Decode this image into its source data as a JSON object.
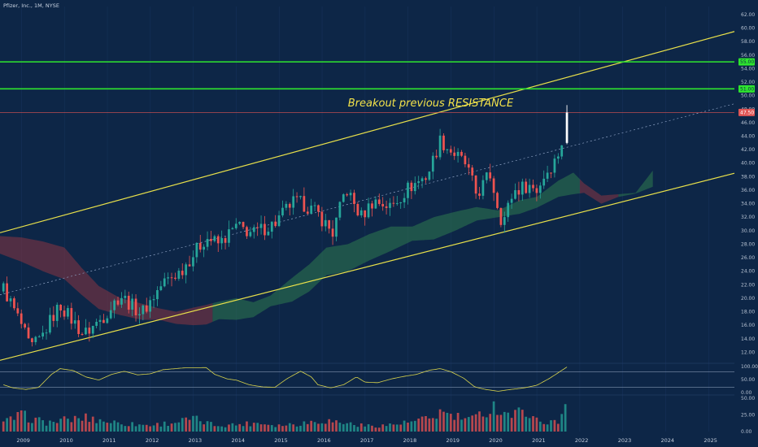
{
  "header": {
    "symbol_line": "Pfizer, Inc., 1M, NYSE"
  },
  "colors": {
    "background": "#0d2647",
    "up_candle": "#26a69a",
    "down_candle": "#ef5350",
    "breakout_candle": "#ffffff",
    "channel_line": "#e8e04a",
    "resistance_line": "#2ee52e",
    "price_line": "#e05555",
    "cloud_bull": "#2f7a4f",
    "cloud_bear": "#8a3442",
    "oscillator": "#d8d34c",
    "up_volume": "#26a69a",
    "down_volume": "#ef5350"
  },
  "annotation": {
    "text": "Breakout previous RESISTANCE"
  },
  "chart_data": {
    "type": "candlestick",
    "interval": "1M",
    "y_axis": {
      "ticks": [
        "62.00",
        "60.00",
        "58.00",
        "56.00",
        "54.00",
        "52.00",
        "50.00",
        "48.00",
        "46.00",
        "44.00",
        "42.00",
        "40.00",
        "38.00",
        "36.00",
        "34.00",
        "32.00",
        "30.00",
        "28.00",
        "26.00",
        "24.00",
        "22.00",
        "20.00",
        "18.00",
        "16.00",
        "14.00",
        "12.00"
      ],
      "range": [
        10.6,
        63.2
      ]
    },
    "x_axis": {
      "ticks": [
        "2009",
        "2010",
        "2011",
        "2012",
        "2013",
        "2014",
        "2015",
        "2016",
        "2017",
        "2018",
        "2019",
        "2020",
        "2021",
        "2022",
        "2023",
        "2024",
        "2025"
      ],
      "range": [
        2008.5,
        2025.6
      ]
    },
    "price_labels": [
      {
        "value": 55.0,
        "label": "55.00",
        "kind": "resistance"
      },
      {
        "value": 51.0,
        "label": "51.00",
        "kind": "resistance"
      },
      {
        "value": 47.5,
        "label": "47.50",
        "kind": "price"
      }
    ],
    "horizontal_lines": [
      55.0,
      51.0,
      47.5
    ],
    "channel": {
      "upper": [
        [
          2008.5,
          29.7
        ],
        [
          2025.6,
          59.5
        ]
      ],
      "lower": [
        [
          2008.5,
          10.8
        ],
        [
          2025.6,
          38.5
        ]
      ],
      "middle": [
        [
          2008.5,
          20.5
        ],
        [
          2025.6,
          48.8
        ]
      ]
    },
    "price_anchors": [
      [
        2008.58,
        21.5
      ],
      [
        2009.0,
        16.0
      ],
      [
        2009.2,
        12.5
      ],
      [
        2009.45,
        14.0
      ],
      [
        2009.7,
        17.0
      ],
      [
        2009.9,
        19.0
      ],
      [
        2010.15,
        17.0
      ],
      [
        2010.45,
        14.6
      ],
      [
        2010.9,
        17.2
      ],
      [
        2011.3,
        20.5
      ],
      [
        2011.55,
        19.0
      ],
      [
        2011.8,
        17.8
      ],
      [
        2012.3,
        22.3
      ],
      [
        2012.7,
        24.0
      ],
      [
        2013.3,
        29.0
      ],
      [
        2013.6,
        28.0
      ],
      [
        2014.0,
        30.6
      ],
      [
        2014.4,
        29.6
      ],
      [
        2014.9,
        31.1
      ],
      [
        2015.3,
        34.2
      ],
      [
        2015.55,
        34.0
      ],
      [
        2015.9,
        32.5
      ],
      [
        2016.25,
        29.6
      ],
      [
        2016.55,
        36.3
      ],
      [
        2016.9,
        32.0
      ],
      [
        2017.2,
        34.5
      ],
      [
        2017.6,
        33.5
      ],
      [
        2018.0,
        36.3
      ],
      [
        2018.45,
        38.2
      ],
      [
        2018.75,
        43.4
      ],
      [
        2019.0,
        41.8
      ],
      [
        2019.35,
        39.8
      ],
      [
        2019.6,
        35.2
      ],
      [
        2019.9,
        38.5
      ],
      [
        2020.2,
        31.0
      ],
      [
        2020.45,
        35.8
      ],
      [
        2020.8,
        36.8
      ],
      [
        2021.0,
        36.0
      ],
      [
        2021.2,
        38.5
      ],
      [
        2021.45,
        40.6
      ],
      [
        2021.6,
        43.4
      ],
      [
        2021.7,
        47.5
      ]
    ],
    "breakout_candle": {
      "open": 43.0,
      "close": 47.5,
      "high": 48.6,
      "low": 42.8
    },
    "ichimoku_cloud": {
      "upper": [
        [
          2008.5,
          29.2
        ],
        [
          2009.0,
          29.0
        ],
        [
          2009.5,
          28.4
        ],
        [
          2010.0,
          27.5
        ],
        [
          2010.4,
          24.5
        ],
        [
          2010.8,
          21.8
        ],
        [
          2011.3,
          20.0
        ],
        [
          2011.8,
          19.2
        ],
        [
          2012.2,
          18.5
        ],
        [
          2012.6,
          18.0
        ],
        [
          2013.0,
          18.6
        ],
        [
          2013.3,
          19.0
        ],
        [
          2013.6,
          19.5
        ],
        [
          2014.0,
          20.0
        ],
        [
          2014.4,
          19.4
        ],
        [
          2014.8,
          20.4
        ],
        [
          2015.3,
          23.0
        ],
        [
          2015.7,
          25.0
        ],
        [
          2016.1,
          27.5
        ],
        [
          2016.6,
          28.0
        ],
        [
          2017.1,
          29.5
        ],
        [
          2017.6,
          30.6
        ],
        [
          2018.1,
          30.6
        ],
        [
          2018.6,
          32.0
        ],
        [
          2019.1,
          32.8
        ],
        [
          2019.6,
          33.5
        ],
        [
          2020.1,
          33.0
        ],
        [
          2020.6,
          34.5
        ],
        [
          2021.0,
          35.0
        ],
        [
          2021.5,
          37.4
        ],
        [
          2021.85,
          38.6
        ],
        [
          2022.1,
          37.0
        ],
        [
          2022.5,
          35.2
        ],
        [
          2022.9,
          35.4
        ],
        [
          2023.3,
          35.6
        ],
        [
          2023.7,
          38.9
        ]
      ],
      "lower": [
        [
          2008.5,
          26.6
        ],
        [
          2009.0,
          25.4
        ],
        [
          2009.5,
          24.0
        ],
        [
          2010.0,
          22.8
        ],
        [
          2010.4,
          20.5
        ],
        [
          2010.8,
          18.4
        ],
        [
          2011.3,
          17.5
        ],
        [
          2011.8,
          16.8
        ],
        [
          2012.2,
          16.8
        ],
        [
          2012.6,
          16.2
        ],
        [
          2013.0,
          16.0
        ],
        [
          2013.3,
          16.1
        ],
        [
          2013.6,
          16.9
        ],
        [
          2014.0,
          16.8
        ],
        [
          2014.4,
          17.2
        ],
        [
          2014.8,
          18.8
        ],
        [
          2015.3,
          19.5
        ],
        [
          2015.7,
          21.0
        ],
        [
          2016.1,
          23.4
        ],
        [
          2016.6,
          24.0
        ],
        [
          2017.1,
          25.6
        ],
        [
          2017.6,
          27.0
        ],
        [
          2018.1,
          28.5
        ],
        [
          2018.6,
          28.7
        ],
        [
          2019.1,
          30.0
        ],
        [
          2019.6,
          31.5
        ],
        [
          2020.1,
          32.0
        ],
        [
          2020.6,
          32.5
        ],
        [
          2021.0,
          33.4
        ],
        [
          2021.5,
          35.0
        ],
        [
          2021.85,
          35.4
        ],
        [
          2022.1,
          35.6
        ],
        [
          2022.5,
          34.0
        ],
        [
          2022.9,
          35.0
        ],
        [
          2023.3,
          35.5
        ],
        [
          2023.7,
          36.5
        ]
      ],
      "bear_ranges": [
        [
          2008.5,
          2013.4
        ],
        [
          2021.95,
          2022.85
        ]
      ]
    },
    "oscillator": {
      "y_ticks": [
        "100.00",
        "50.00",
        "0.00"
      ],
      "levels": [
        80,
        20
      ],
      "anchors": [
        [
          2008.58,
          30
        ],
        [
          2008.8,
          18
        ],
        [
          2009.1,
          12
        ],
        [
          2009.4,
          20
        ],
        [
          2009.7,
          70
        ],
        [
          2009.9,
          92
        ],
        [
          2010.2,
          85
        ],
        [
          2010.5,
          60
        ],
        [
          2010.8,
          48
        ],
        [
          2011.1,
          70
        ],
        [
          2011.4,
          82
        ],
        [
          2011.7,
          68
        ],
        [
          2012.0,
          72
        ],
        [
          2012.3,
          88
        ],
        [
          2012.8,
          95
        ],
        [
          2013.3,
          96
        ],
        [
          2013.5,
          70
        ],
        [
          2013.8,
          52
        ],
        [
          2014.0,
          48
        ],
        [
          2014.3,
          30
        ],
        [
          2014.6,
          22
        ],
        [
          2014.9,
          20
        ],
        [
          2015.2,
          55
        ],
        [
          2015.5,
          82
        ],
        [
          2015.75,
          60
        ],
        [
          2015.9,
          30
        ],
        [
          2016.2,
          18
        ],
        [
          2016.5,
          30
        ],
        [
          2016.8,
          60
        ],
        [
          2017.0,
          40
        ],
        [
          2017.3,
          38
        ],
        [
          2017.6,
          52
        ],
        [
          2017.9,
          62
        ],
        [
          2018.2,
          70
        ],
        [
          2018.5,
          86
        ],
        [
          2018.75,
          92
        ],
        [
          2019.0,
          80
        ],
        [
          2019.3,
          55
        ],
        [
          2019.55,
          22
        ],
        [
          2019.8,
          12
        ],
        [
          2020.1,
          5
        ],
        [
          2020.4,
          12
        ],
        [
          2020.7,
          18
        ],
        [
          2021.0,
          28
        ],
        [
          2021.3,
          55
        ],
        [
          2021.55,
          82
        ],
        [
          2021.7,
          98
        ]
      ]
    },
    "volume": {
      "y_ticks": [
        "50.00",
        "25.00",
        "0.00"
      ],
      "range": [
        0,
        50
      ],
      "anchors": [
        [
          2008.58,
          14
        ],
        [
          2009.0,
          26
        ],
        [
          2009.3,
          19
        ],
        [
          2009.6,
          14
        ],
        [
          2010.0,
          18
        ],
        [
          2010.5,
          22
        ],
        [
          2011.0,
          16
        ],
        [
          2011.5,
          12
        ],
        [
          2012.0,
          10
        ],
        [
          2012.5,
          14
        ],
        [
          2013.0,
          20
        ],
        [
          2013.5,
          10
        ],
        [
          2014.0,
          11
        ],
        [
          2014.5,
          14
        ],
        [
          2015.0,
          10
        ],
        [
          2015.5,
          13
        ],
        [
          2016.0,
          18
        ],
        [
          2016.5,
          14
        ],
        [
          2017.0,
          9
        ],
        [
          2017.5,
          10
        ],
        [
          2018.0,
          14
        ],
        [
          2018.5,
          20
        ],
        [
          2018.8,
          32
        ],
        [
          2019.0,
          24
        ],
        [
          2019.5,
          19
        ],
        [
          2020.0,
          40
        ],
        [
          2020.4,
          26
        ],
        [
          2020.8,
          34
        ],
        [
          2021.0,
          17
        ],
        [
          2021.5,
          14
        ],
        [
          2021.7,
          50
        ]
      ]
    }
  }
}
